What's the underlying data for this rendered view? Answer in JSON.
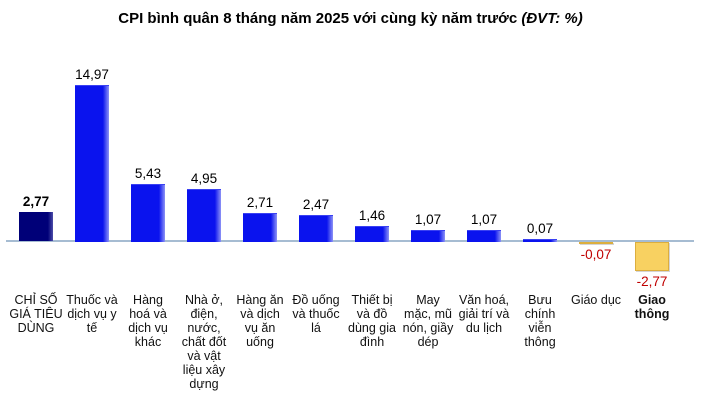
{
  "title": {
    "main": "CPI bình quân 8 tháng năm 2025 với cùng kỳ năm trước ",
    "unit": "(ĐVT: %)"
  },
  "colors": {
    "positive_bar": "#0a13ee",
    "highlight_bar": "#000078",
    "negative_bar": "#f8d161",
    "negative_bar_border": "#dcae3e",
    "negative_value_label": "#c00000",
    "axis_line": "#a6bcd2",
    "text": "#000000"
  },
  "chart_data": {
    "type": "bar",
    "title": "CPI bình quân 8 tháng năm 2025 với cùng kỳ năm trước (ĐVT: %)",
    "unit": "%",
    "categories": [
      "CHỈ SỐ GIÁ TIÊU DÙNG",
      "Thuốc và dịch vụ y tế",
      "Hàng hoá và dịch vụ khác",
      "Nhà ở, điện, nước, chất đốt và vật liệu xây dựng",
      "Hàng ăn và dịch vụ ăn uống",
      "Đồ uống và thuốc lá",
      "Thiết bị và đồ dùng gia đình",
      "May mặc, mũ nón, giầy dép",
      "Văn hoá, giải trí và du lịch",
      "Bưu chính viễn thông",
      "Giáo dục",
      "Giao thông"
    ],
    "values": [
      2.77,
      14.97,
      5.43,
      4.95,
      2.71,
      2.47,
      1.46,
      1.07,
      1.07,
      0.07,
      -0.07,
      -2.77
    ],
    "value_labels": [
      "2,77",
      "14,97",
      "5,43",
      "4,95",
      "2,71",
      "2,47",
      "1,46",
      "1,07",
      "1,07",
      "0,07",
      "-0,07",
      "-2,77"
    ],
    "highlight_index": 0,
    "bold_value_index": 0,
    "bold_category_index": 11,
    "ylim": [
      -3,
      16
    ],
    "grid": false,
    "legend": "none",
    "xlabel": "",
    "ylabel": ""
  }
}
